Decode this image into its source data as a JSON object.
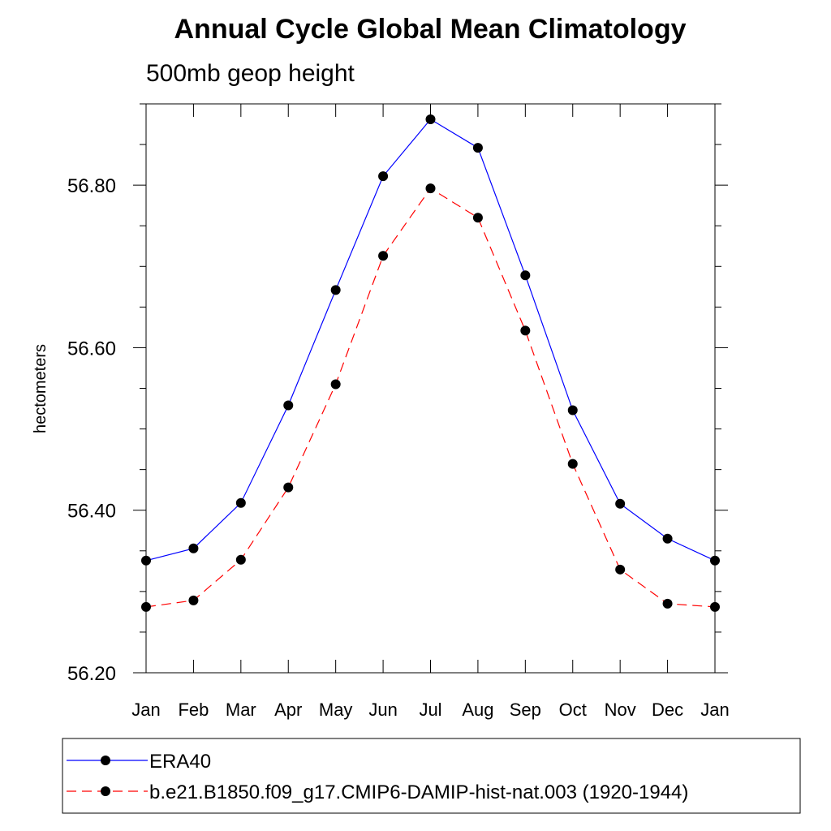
{
  "chart_data": {
    "type": "line",
    "title": "Annual Cycle Global Mean Climatology",
    "subtitle": "500mb geop height",
    "xlabel": "",
    "ylabel": "hectometers",
    "categories": [
      "Jan",
      "Feb",
      "Mar",
      "Apr",
      "May",
      "Jun",
      "Jul",
      "Aug",
      "Sep",
      "Oct",
      "Nov",
      "Dec",
      "Jan"
    ],
    "ylim": [
      56.2,
      56.9
    ],
    "yticks": [
      56.2,
      56.4,
      56.6,
      56.8
    ],
    "ytick_labels": [
      "56.20",
      "56.40",
      "56.60",
      "56.80"
    ],
    "grid": false,
    "legend_placement": "bottom",
    "series": [
      {
        "name": "ERA40",
        "color": "#0000ff",
        "line_style": "solid",
        "marker": "circle",
        "values": [
          56.338,
          56.353,
          56.409,
          56.529,
          56.671,
          56.811,
          56.881,
          56.846,
          56.689,
          56.523,
          56.408,
          56.365,
          56.338
        ]
      },
      {
        "name": "b.e21.B1850.f09_g17.CMIP6-DAMIP-hist-nat.003 (1920-1944)",
        "color": "#ff0000",
        "line_style": "dashed",
        "marker": "circle",
        "values": [
          56.281,
          56.289,
          56.339,
          56.428,
          56.555,
          56.713,
          56.796,
          56.76,
          56.621,
          56.457,
          56.327,
          56.285,
          56.281
        ]
      }
    ]
  }
}
